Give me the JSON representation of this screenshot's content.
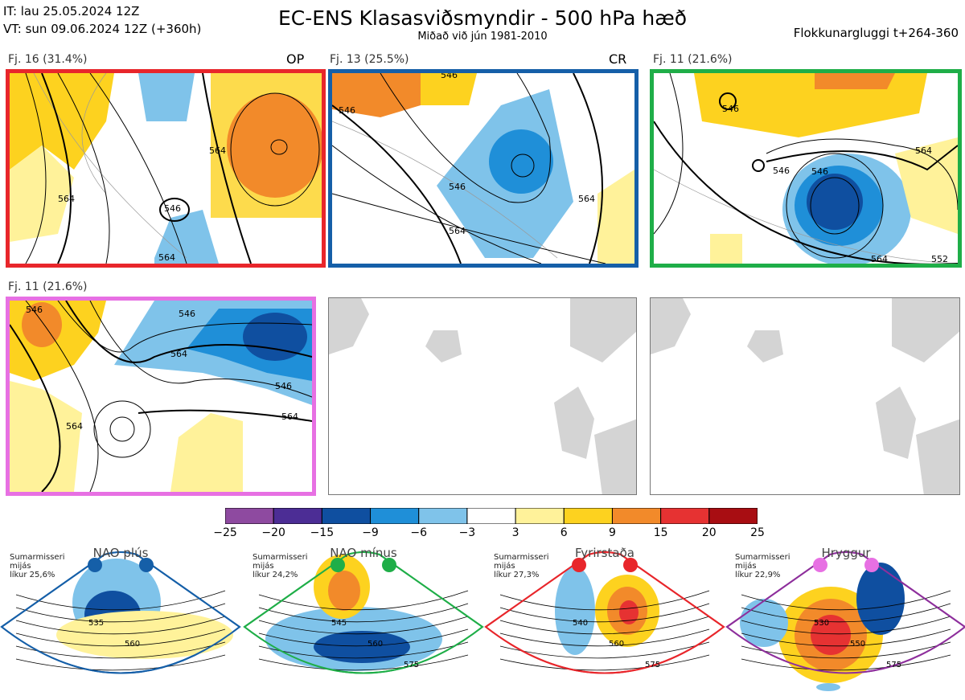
{
  "header": {
    "it_line": "IT: lau 25.05.2024 12Z",
    "vt_line": "VT: sun 09.06.2024 12Z  (+360h)",
    "title": "EC-ENS Klasasviðsmyndir - 500 hPa hæð",
    "subtitle": "Miðað við jún 1981-2010",
    "window": "Flokkunargluggi t+264-360"
  },
  "panels": [
    {
      "label": "Fj. 16 (31.4%)",
      "tag": "OP",
      "color": "#e8262b",
      "contours": [
        "564",
        "546",
        "564",
        "564"
      ]
    },
    {
      "label": "Fj. 13 (25.5%)",
      "tag": "CR",
      "color": "#155fa8",
      "contours": [
        "546",
        "546",
        "564",
        "546",
        "564"
      ]
    },
    {
      "label": "Fj. 11 (21.6%)",
      "tag": "",
      "color": "#1fae48",
      "contours": [
        "546",
        "546",
        "546",
        "564",
        "564",
        "552"
      ]
    },
    {
      "label": "Fj. 11 (21.6%)",
      "tag": "",
      "color": "#e770e3",
      "contours": [
        "546",
        "546",
        "564",
        "546",
        "564",
        "564"
      ]
    }
  ],
  "colorbar": {
    "ticks": [
      "−25",
      "−20",
      "−15",
      "−9",
      "−6",
      "−3",
      "3",
      "6",
      "9",
      "15",
      "20",
      "25"
    ],
    "colors": [
      "#8e4aa0",
      "#4c2d95",
      "#0f4fa0",
      "#1f8fd8",
      "#7fc3ea",
      "#ffffff",
      "#fff29a",
      "#fdd21f",
      "#f28a2a",
      "#e63232",
      "#a80d12"
    ]
  },
  "regimes": [
    {
      "name": "NAO plús",
      "note": [
        "Sumarmisseri",
        "mijás",
        "líkur 25,6%"
      ],
      "color": "#155fa8",
      "contours": [
        "535",
        "560"
      ]
    },
    {
      "name": "NAO mínus",
      "note": [
        "Sumarmisseri",
        "mijás",
        "líkur 24,2%"
      ],
      "color": "#1fae48",
      "contours": [
        "545",
        "560",
        "575"
      ]
    },
    {
      "name": "Fyrirstaða",
      "note": [
        "Sumarmisseri",
        "mijás",
        "líkur 27,3%"
      ],
      "color": "#e8262b",
      "contours": [
        "540",
        "560",
        "575"
      ]
    },
    {
      "name": "Hryggur",
      "note": [
        "Sumarmisseri",
        "mijás",
        "líkur 22,9%"
      ],
      "color": "#8e2f9c",
      "contours": [
        "530",
        "550",
        "575"
      ]
    }
  ]
}
